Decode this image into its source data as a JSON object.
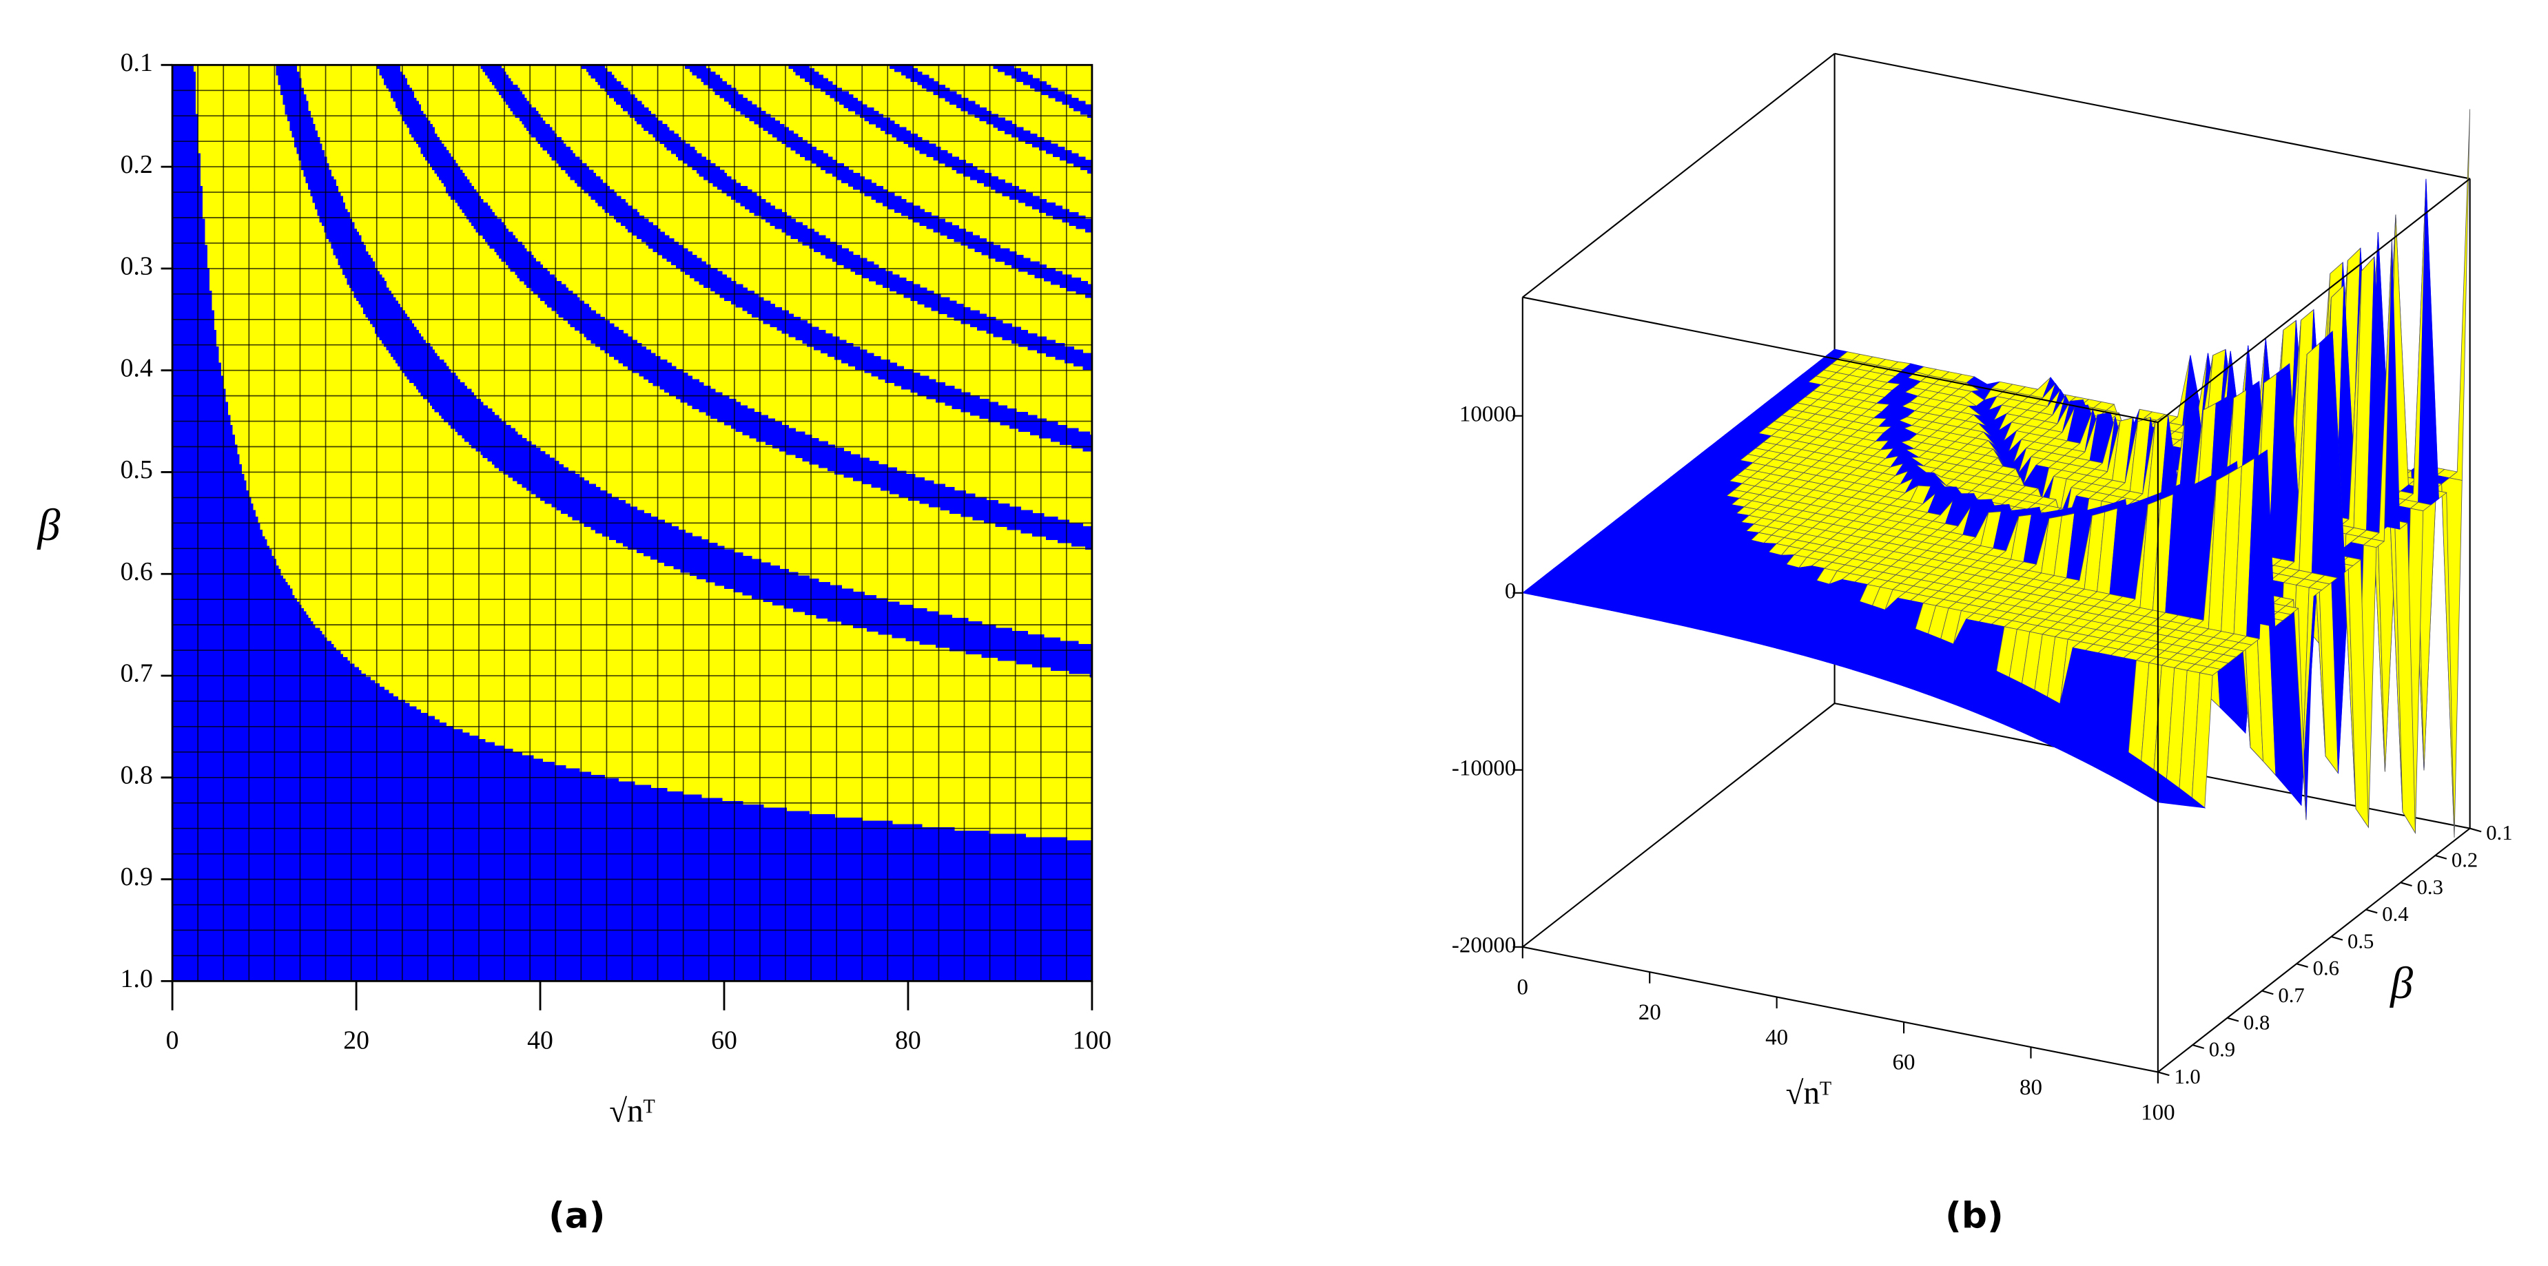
{
  "chart_data": [
    {
      "type": "contour",
      "caption": "(a)",
      "x_label": "√nᵀ",
      "y_label": "β",
      "xlim": [
        0,
        100
      ],
      "xticks": [
        0,
        20,
        40,
        60,
        80,
        100
      ],
      "ylim": [
        0.1,
        1
      ],
      "yticks": [
        0.1,
        0.2,
        0.3,
        0.4,
        0.5,
        0.6,
        0.7,
        0.8,
        0.9,
        {
          "value": 1,
          "label": "1.0"
        }
      ],
      "y_inverted": true,
      "colors": [
        "#ffff00",
        "#0000ff"
      ],
      "grid": true
    },
    {
      "type": "surface3d",
      "caption": "(b)",
      "x_label": "√nᵀ",
      "y_label": "β",
      "xlim": [
        0,
        100
      ],
      "xticks": [
        0,
        20,
        40,
        60,
        80,
        100
      ],
      "ylim": [
        0.1,
        1
      ],
      "yticks": [
        0.1,
        0.2,
        0.3,
        0.4,
        0.5,
        0.6,
        0.7,
        0.8,
        0.9,
        {
          "value": 1,
          "label": "1.0"
        }
      ],
      "zlim": [
        -20000,
        16700
      ],
      "zticks": [
        -20000,
        -10000,
        0,
        10000
      ],
      "colors": [
        "#ffff00",
        "#0000ff"
      ]
    }
  ]
}
